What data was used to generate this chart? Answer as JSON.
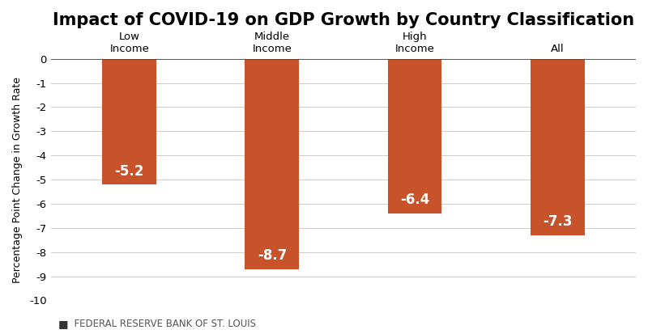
{
  "title": "Impact of COVID-19 on GDP Growth by Country Classification",
  "categories": [
    "Low\nIncome",
    "Middle\nIncome",
    "High\nIncome",
    "All"
  ],
  "values": [
    -5.2,
    -8.7,
    -6.4,
    -7.3
  ],
  "bar_color": "#C8522A",
  "bar_width": 0.38,
  "ylabel": "Percentage Point Change in Growth Rate",
  "ylim": [
    -10,
    0
  ],
  "yticks": [
    0,
    -1,
    -2,
    -3,
    -4,
    -5,
    -6,
    -7,
    -8,
    -9,
    -10
  ],
  "value_labels": [
    "-5.2",
    "-8.7",
    "-6.4",
    "-7.3"
  ],
  "value_label_color": "#ffffff",
  "value_label_fontsize": 12,
  "title_fontsize": 15,
  "ylabel_fontsize": 9,
  "tick_fontsize": 9.5,
  "background_color": "#ffffff",
  "grid_color": "#cccccc",
  "footer_square": "■",
  "footer_text": "  FEDERAL RESERVE BANK OF ST. LOUIS",
  "footer_fontsize": 8.5
}
